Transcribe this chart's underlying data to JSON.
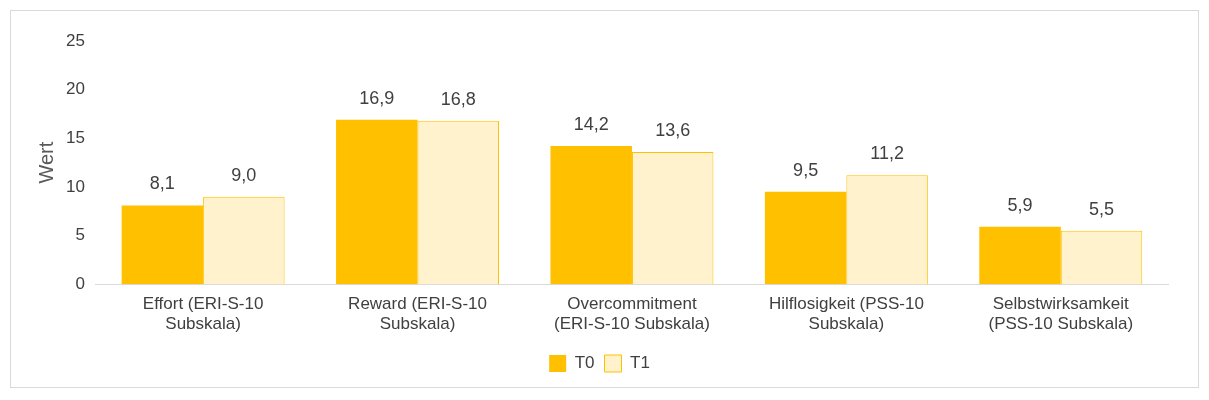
{
  "chart_data": {
    "type": "bar",
    "ylabel": "Wert",
    "categories": [
      "Effort (ERI-S-10 Subskala)",
      "Reward (ERI-S-10 Subskala)",
      "Overcommitment (ERI-S-10 Subskala)",
      "Hilflosigkeit (PSS-10 Subskala)",
      "Selbstwirksamkeit (PSS-10 Subskala)"
    ],
    "series": [
      {
        "name": "T0",
        "color": "#ffc000",
        "values": [
          8.1,
          16.9,
          14.2,
          9.5,
          5.9
        ],
        "value_labels": [
          "8,1",
          "16,9",
          "14,2",
          "9,5",
          "5,9"
        ]
      },
      {
        "name": "T1",
        "color": "#fff2cc",
        "values": [
          9.0,
          16.8,
          13.6,
          11.2,
          5.5
        ],
        "value_labels": [
          "9,0",
          "16,8",
          "13,6",
          "11,2",
          "5,5"
        ]
      }
    ],
    "ylim": [
      0,
      25
    ],
    "yticks": [
      0,
      5,
      10,
      15,
      20,
      25
    ],
    "grid": false,
    "legend": "bottom"
  }
}
